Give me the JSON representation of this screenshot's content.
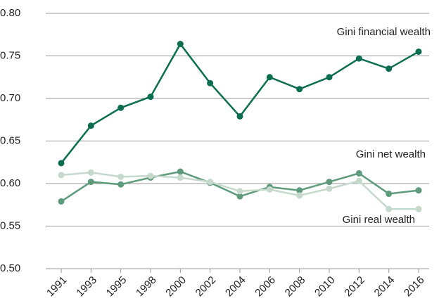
{
  "chart_data": {
    "type": "line",
    "categories": [
      "1991",
      "1993",
      "1995",
      "1998",
      "2000",
      "2002",
      "2004",
      "2006",
      "2008",
      "2010",
      "2012",
      "2014",
      "2016"
    ],
    "series": [
      {
        "name": "Gini financial wealth",
        "color": "#0b6e4f",
        "values": [
          0.624,
          0.668,
          0.689,
          0.702,
          0.764,
          0.718,
          0.679,
          0.725,
          0.711,
          0.725,
          0.747,
          0.735,
          0.755
        ]
      },
      {
        "name": "Gini net wealth",
        "color": "#5e9a7c",
        "values": [
          0.579,
          0.602,
          0.599,
          0.607,
          0.614,
          0.601,
          0.585,
          0.596,
          0.592,
          0.602,
          0.612,
          0.588,
          0.592
        ]
      },
      {
        "name": "Gini real wealth",
        "color": "#c5d9cc",
        "values": [
          0.61,
          0.613,
          0.608,
          0.609,
          0.607,
          0.602,
          0.591,
          0.593,
          0.586,
          0.594,
          0.603,
          0.57,
          0.57
        ]
      }
    ],
    "ylim": [
      0.5,
      0.8
    ],
    "yticks": [
      {
        "value": 0.5,
        "label": "0.50"
      },
      {
        "value": 0.55,
        "label": "0.55"
      },
      {
        "value": 0.6,
        "label": "0.60"
      },
      {
        "value": 0.65,
        "label": "0.65"
      },
      {
        "value": 0.7,
        "label": "0.70"
      },
      {
        "value": 0.75,
        "label": "0.75"
      },
      {
        "value": 0.8,
        "label": "0.80"
      }
    ],
    "grid": true
  }
}
